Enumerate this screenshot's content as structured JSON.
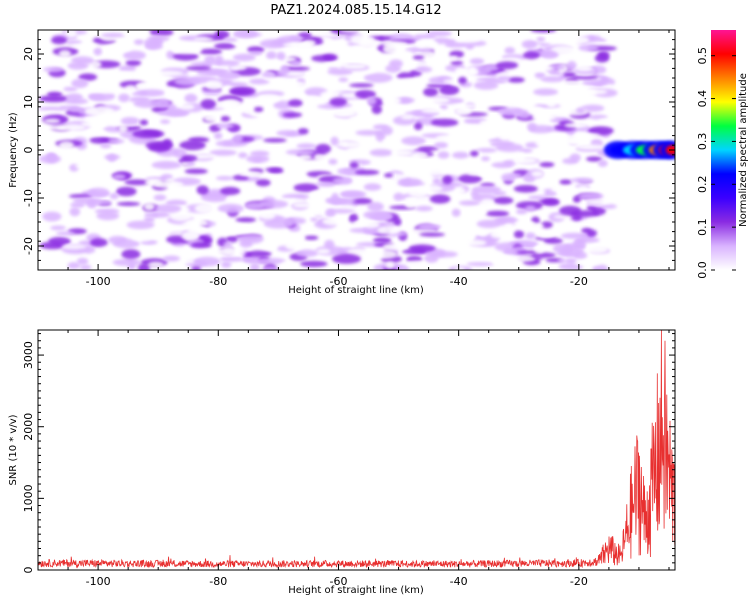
{
  "title": "PAZ1.2024.085.15.14.G12",
  "chart_data": [
    {
      "type": "heatmap",
      "name": "spectrogram",
      "xlabel": "Height of straight line (km)",
      "ylabel": "Frequency (Hz)",
      "xlim": [
        -110,
        -4
      ],
      "ylim": [
        -25,
        25
      ],
      "x_ticks": [
        -100,
        -80,
        -60,
        -40,
        -20
      ],
      "y_ticks": [
        -20,
        -10,
        0,
        10,
        20
      ],
      "colorbar": {
        "label": "Normalized spectral amplitude",
        "range": [
          0.0,
          0.56
        ],
        "ticks": [
          0.0,
          0.1,
          0.2,
          0.3,
          0.4,
          0.5
        ],
        "colors": [
          "#ffffff",
          "#d9b3ff",
          "#8a2be2",
          "#3b00ff",
          "#0000ff",
          "#00d5ff",
          "#00ff40",
          "#ffff00",
          "#ff8000",
          "#ff0000",
          "#ff1493"
        ]
      },
      "features": [
        {
          "description_values": "background noise amplitude",
          "amplitude_range": [
            0.0,
            0.12
          ],
          "x_range": [
            -108,
            -15
          ],
          "y_range": [
            -25,
            25
          ]
        },
        {
          "description_values": "signal peak",
          "x_range": [
            -14,
            -4
          ],
          "y_center": 0,
          "amplitude_range": [
            0.2,
            0.5
          ]
        }
      ]
    },
    {
      "type": "line",
      "name": "snr",
      "xlabel": "Height of straight line (km)",
      "ylabel": "SNR (10 * v/v)",
      "xlim": [
        -110,
        -4
      ],
      "ylim": [
        0,
        3350
      ],
      "x_ticks": [
        -100,
        -80,
        -60,
        -40,
        -20
      ],
      "y_ticks": [
        0,
        1000,
        2000,
        3000
      ],
      "color": "#e83030",
      "profile": [
        {
          "x": -110,
          "y": 120
        },
        {
          "x": -100,
          "y": 115
        },
        {
          "x": -80,
          "y": 105
        },
        {
          "x": -60,
          "y": 110
        },
        {
          "x": -40,
          "y": 105
        },
        {
          "x": -20,
          "y": 120
        },
        {
          "x": -17,
          "y": 150
        },
        {
          "x": -15,
          "y": 500
        },
        {
          "x": -13,
          "y": 300
        },
        {
          "x": -11,
          "y": 1500
        },
        {
          "x": -10,
          "y": 2000
        },
        {
          "x": -9,
          "y": 1100
        },
        {
          "x": -8,
          "y": 1700
        },
        {
          "x": -7,
          "y": 2500
        },
        {
          "x": -6,
          "y": 3350
        },
        {
          "x": -5,
          "y": 2200
        },
        {
          "x": -4,
          "y": 1500
        }
      ]
    }
  ]
}
